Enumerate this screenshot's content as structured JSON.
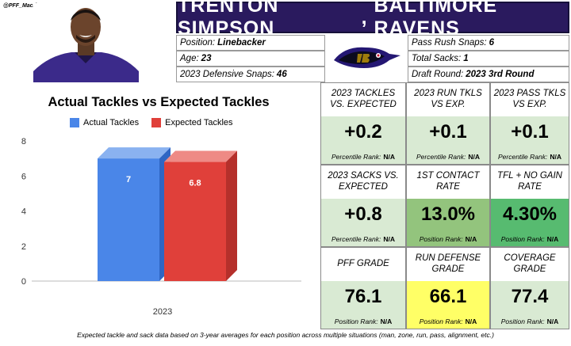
{
  "handle": "@PFF_Macri",
  "banner": {
    "player": "TRENTON SIMPSON",
    "team": "BALTIMORE RAVENS"
  },
  "info": {
    "position": {
      "label": "Position:",
      "value": "Linebacker"
    },
    "age": {
      "label": "Age:",
      "value": "23"
    },
    "snaps": {
      "label": "2023 Defensive Snaps:",
      "value": "46"
    },
    "pass_rush": {
      "label": "Pass Rush Snaps:",
      "value": "6"
    },
    "sacks": {
      "label": "Total Sacks:",
      "value": "1"
    },
    "draft": {
      "label": "Draft Round:",
      "value": "2023 3rd Round"
    }
  },
  "colors": {
    "banner": "#2a1a5e",
    "actual": "#4a86e8",
    "expected": "#e0403a",
    "light_green": "#d9ead3",
    "green_mid": "#93c47d",
    "green_dark": "#57bb70",
    "yellow": "#ffff66"
  },
  "chart_data": {
    "type": "bar",
    "title": "Actual Tackles vs Expected Tackles",
    "categories": [
      "2023"
    ],
    "series": [
      {
        "name": "Actual Tackles",
        "values": [
          7
        ]
      },
      {
        "name": "Expected Tackles",
        "values": [
          6.8
        ]
      }
    ],
    "yticks": [
      0,
      2,
      4,
      6,
      8
    ],
    "ylim": [
      0,
      8
    ],
    "data_labels": [
      "7",
      "6.8"
    ],
    "xlabel": "",
    "ylabel": ""
  },
  "stats": [
    {
      "header": "2023 TACKLES vs. EXPECTED",
      "value": "+0.2",
      "rank_label": "Percentile Rank:",
      "rank": "N/A"
    },
    {
      "header": "2023 RUN TKLs vs EXP.",
      "value": "+0.1",
      "rank_label": "Percentile Rank:",
      "rank": "N/A"
    },
    {
      "header": "2023 PASS TKLs vs EXP.",
      "value": "+0.1",
      "rank_label": "Percentile Rank:",
      "rank": "N/A"
    },
    {
      "header": "2023 SACKS vs. EXPECTED",
      "value": "+0.8",
      "rank_label": "Percentile Rank:",
      "rank": "N/A"
    },
    {
      "header": "1ST CONTACT RATE",
      "value": "13.0%",
      "rank_label": "Position Rank:",
      "rank": "N/A"
    },
    {
      "header": "TFL + NO GAIN RATE",
      "value": "4.30%",
      "rank_label": "Position Rank:",
      "rank": "N/A"
    },
    {
      "header": "PFF GRADE",
      "value": "76.1",
      "rank_label": "Position Rank:",
      "rank": "N/A"
    },
    {
      "header": "RUN DEFENSE GRADE",
      "value": "66.1",
      "rank_label": "Position Rank:",
      "rank": "N/A"
    },
    {
      "header": "COVERAGE GRADE",
      "value": "77.4",
      "rank_label": "Position Rank:",
      "rank": "N/A"
    }
  ],
  "footnote": "Expected tackle and sack data based on 3-year averages for each position across multiple situations (man, zone, run, pass, alignment, etc.)"
}
